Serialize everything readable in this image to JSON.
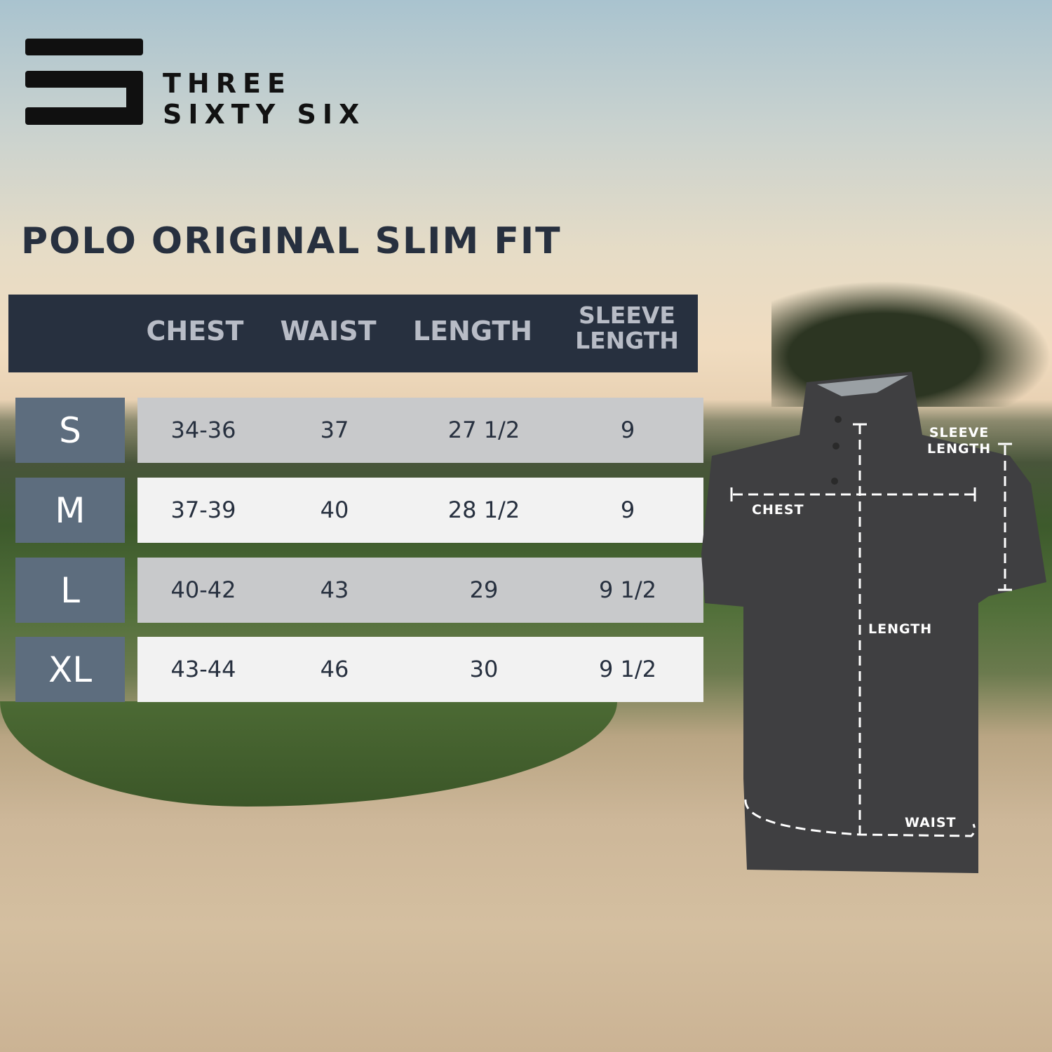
{
  "brand": {
    "line1": "THREE",
    "line2": "SIXTY SIX"
  },
  "title": "POLO ORIGINAL SLIM FIT",
  "table": {
    "headers": [
      "CHEST",
      "WAIST",
      "LENGTH",
      "SLEEVE LENGTH"
    ],
    "sleeve_header": {
      "line1": "SLEEVE",
      "line2": "LENGTH"
    },
    "rows": [
      {
        "size": "S",
        "values": [
          "34-36",
          "37",
          "27 1/2",
          "9"
        ]
      },
      {
        "size": "M",
        "values": [
          "37-39",
          "40",
          "28 1/2",
          "9"
        ]
      },
      {
        "size": "L",
        "values": [
          "40-42",
          "43",
          "29",
          "9 1/2"
        ]
      },
      {
        "size": "XL",
        "values": [
          "43-44",
          "46",
          "30",
          "9 1/2"
        ]
      }
    ]
  },
  "diagram": {
    "chest": "CHEST",
    "length": "LENGTH",
    "waist": "WAIST",
    "sleeve_line1": "SLEEVE",
    "sleeve_line2": "LENGTH"
  },
  "colors": {
    "header_bg": "#27303f",
    "size_bg": "#5d6d7e",
    "row_dark": "#c8c9cb",
    "row_light": "#f2f2f2",
    "shirt": "#3f3f41"
  }
}
